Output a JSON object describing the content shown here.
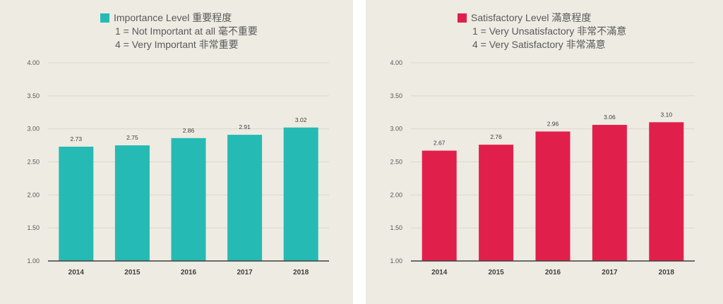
{
  "chart_data": [
    {
      "type": "bar",
      "legend": {
        "label": "Importance Level 重要程度",
        "note1": "1 = Not Important at all 毫不重要",
        "note2": "4 = Very Important 非常重要"
      },
      "color": "#26bab4",
      "categories": [
        "2014",
        "2015",
        "2016",
        "2017",
        "2018"
      ],
      "values": [
        2.73,
        2.75,
        2.86,
        2.91,
        3.02
      ],
      "value_labels": [
        "2.73",
        "2.75",
        "2.86",
        "2.91",
        "3.02"
      ],
      "yticks": [
        "1.00",
        "1.50",
        "2.00",
        "2.50",
        "3.00",
        "3.50",
        "4.00"
      ],
      "ylim": [
        1,
        4
      ],
      "grid": true
    },
    {
      "type": "bar",
      "legend": {
        "label": "Satisfactory Level 滿意程度",
        "note1": "1 = Very Unsatisfactory 非常不滿意",
        "note2": "4 = Very Satisfactory 非常滿意"
      },
      "color": "#e0204a",
      "categories": [
        "2014",
        "2015",
        "2016",
        "2017",
        "2018"
      ],
      "values": [
        2.67,
        2.76,
        2.96,
        3.06,
        3.1
      ],
      "value_labels": [
        "2.67",
        "2.76",
        "2.96",
        "3.06",
        "3.10"
      ],
      "yticks": [
        "1.00",
        "1.50",
        "2.00",
        "2.50",
        "3.00",
        "3.50",
        "4.00"
      ],
      "ylim": [
        1,
        4
      ],
      "grid": true
    }
  ]
}
